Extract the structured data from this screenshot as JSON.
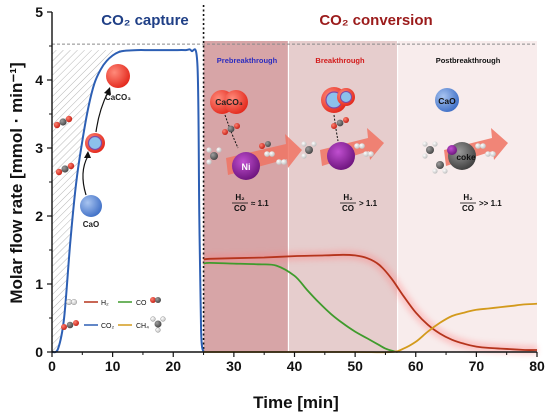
{
  "chart_data": {
    "type": "line",
    "xlabel": "Time [min]",
    "ylabel": "Molar flow rate [mmol · min⁻¹]",
    "xlim": [
      0,
      80
    ],
    "ylim": [
      0,
      5
    ],
    "x_ticks": [
      "0",
      "10",
      "20",
      "30",
      "40",
      "50",
      "60",
      "70",
      "80"
    ],
    "y_ticks": [
      "0",
      "1",
      "2",
      "3",
      "4",
      "5"
    ],
    "grid": false,
    "legend_position": "bottom-left of capture panel",
    "colors": {
      "H2": "#b5341c",
      "CO": "#3f9b2c",
      "CO2": "#2d5fb4",
      "CH4": "#d39a1c",
      "capture_fill": "#9e9e9e",
      "prebreakthrough_band": "#d7a5a7",
      "breakthrough_band": "#e6cdcd",
      "postbreakthrough_band": "#f8ecec"
    },
    "series": [
      {
        "name": "CO2",
        "x": [
          0,
          1,
          2,
          3,
          4,
          5,
          6,
          7,
          8,
          9,
          10,
          11,
          12,
          14,
          16,
          18,
          20,
          22,
          23,
          24,
          24.3,
          24.6,
          25
        ],
        "y": [
          0,
          0.05,
          0.5,
          1.6,
          2.5,
          3.1,
          3.6,
          3.95,
          4.15,
          4.28,
          4.36,
          4.41,
          4.43,
          4.44,
          4.44,
          4.44,
          4.44,
          4.44,
          4.43,
          4.2,
          2.0,
          0.3,
          0
        ]
      },
      {
        "name": "H2",
        "x": [
          25,
          26,
          30,
          35,
          40,
          45,
          48,
          50,
          52,
          54,
          56,
          58,
          60,
          62,
          64,
          66,
          68,
          70,
          72,
          74,
          76,
          78,
          80
        ],
        "y": [
          1.36,
          1.37,
          1.38,
          1.39,
          1.41,
          1.42,
          1.43,
          1.42,
          1.38,
          1.28,
          1.08,
          0.82,
          0.58,
          0.4,
          0.27,
          0.18,
          0.12,
          0.08,
          0.06,
          0.05,
          0.04,
          0.03,
          0.03
        ]
      },
      {
        "name": "CO",
        "x": [
          25,
          26,
          30,
          34,
          37,
          40,
          42,
          44,
          46,
          48,
          50,
          52,
          54,
          55,
          56,
          57
        ],
        "y": [
          1.3,
          1.31,
          1.3,
          1.29,
          1.27,
          1.12,
          0.92,
          0.73,
          0.56,
          0.42,
          0.3,
          0.2,
          0.1,
          0.05,
          0.02,
          0
        ]
      },
      {
        "name": "CH4",
        "x": [
          25,
          30,
          40,
          50,
          56,
          58,
          60,
          62,
          64,
          66,
          68,
          70,
          72,
          74,
          76,
          78,
          80
        ],
        "y": [
          0,
          0,
          0,
          0,
          0,
          0.05,
          0.15,
          0.3,
          0.43,
          0.53,
          0.58,
          0.62,
          0.64,
          0.66,
          0.68,
          0.7,
          0.71
        ]
      }
    ],
    "annotations": {
      "capture_title": "CO₂ capture",
      "conversion_title": "CO₂ conversion",
      "phases": [
        {
          "label": "Prebreakthrough",
          "x_range": [
            25,
            39
          ],
          "ratio_rel": "≈ 1.1"
        },
        {
          "label": "Breakthrough",
          "x_range": [
            39,
            57
          ],
          "ratio_rel": "> 1.1"
        },
        {
          "label": "Postbreakthrough",
          "x_range": [
            57,
            80
          ],
          "ratio_rel": ">> 1.1"
        }
      ],
      "ratio_numerator": "H₂",
      "ratio_denominator": "CO",
      "particle_labels": {
        "caco3": "CaCO₃",
        "cao": "CaO",
        "ni": "Ni",
        "coke": "coke"
      },
      "legend_labels": {
        "h2": "H₂",
        "co": "CO",
        "co2": "CO₂",
        "ch4": "CH₄"
      }
    }
  }
}
